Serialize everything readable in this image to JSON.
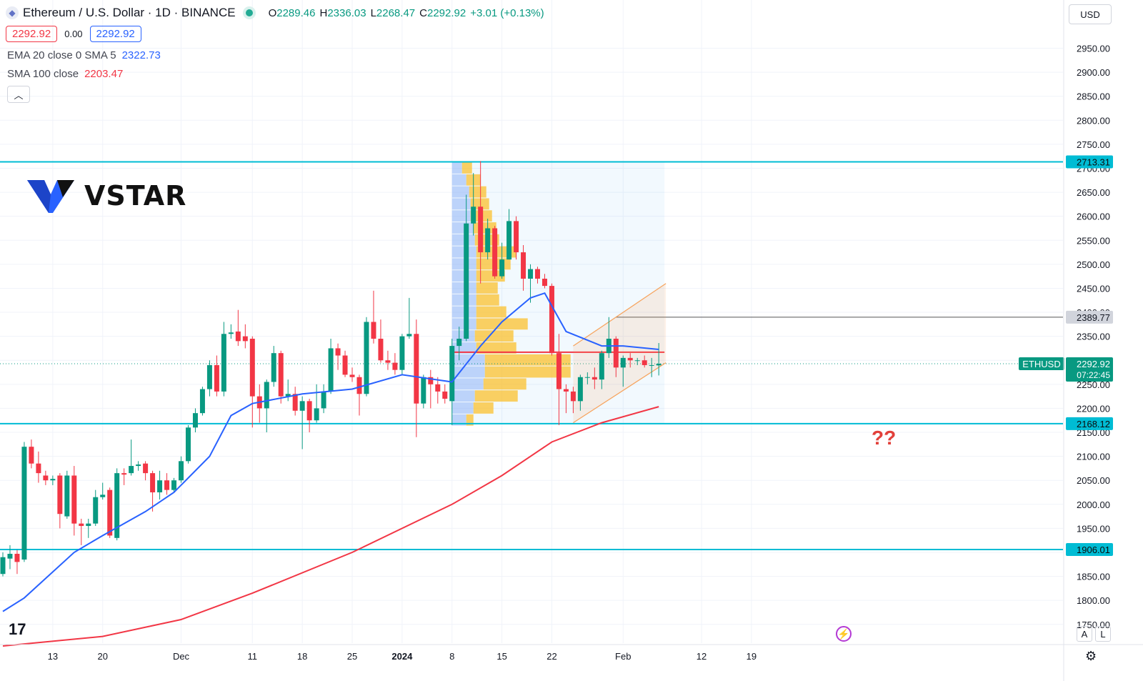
{
  "header": {
    "title": "Ethereum / U.S. Dollar · 1D · BINANCE",
    "icon": "ethereum-icon",
    "ohlc": {
      "o_label": "O",
      "o": "2289.46",
      "h_label": "H",
      "h": "2336.03",
      "l_label": "L",
      "l": "2268.47",
      "c_label": "C",
      "c": "2292.92",
      "change": "+3.01 (+0.13%)"
    },
    "sell_price": "2292.92",
    "spread": "0.00",
    "buy_price": "2292.92",
    "currency": "USD"
  },
  "indicators": [
    {
      "label": "EMA 20 close 0 SMA 5",
      "value": "2322.73",
      "color": "#2962ff"
    },
    {
      "label": "SMA 100 close",
      "value": "2203.47",
      "color": "#f23645"
    }
  ],
  "watermark": {
    "brand": "VSTAR",
    "icon": "vstar-logo-icon"
  },
  "annotation_text": "??",
  "colors": {
    "up": "#089981",
    "down": "#f23645",
    "ema": "#2962ff",
    "sma": "#f23645",
    "level": "#00bcd4",
    "channel": "#f7a35c"
  },
  "chart_data": {
    "type": "candlestick",
    "title": "Ethereum / U.S. Dollar · 1D · BINANCE",
    "ylim": [
      1705,
      2985
    ],
    "x_range": [
      "2023-11-06",
      "2024-02-23"
    ],
    "y_ticks": [
      "2950.00",
      "2900.00",
      "2850.00",
      "2800.00",
      "2750.00",
      "2700.00",
      "2650.00",
      "2600.00",
      "2550.00",
      "2500.00",
      "2450.00",
      "2400.00",
      "2350.00",
      "2300.00",
      "2250.00",
      "2200.00",
      "2150.00",
      "2100.00",
      "2050.00",
      "2000.00",
      "1950.00",
      "1900.00",
      "1850.00",
      "1800.00",
      "1750.00"
    ],
    "x_ticks": [
      {
        "date": "2023-11-13",
        "label": "13",
        "bold": false
      },
      {
        "date": "2023-11-20",
        "label": "20",
        "bold": false
      },
      {
        "date": "2023-12-01",
        "label": "Dec",
        "bold": false
      },
      {
        "date": "2023-12-11",
        "label": "11",
        "bold": false
      },
      {
        "date": "2023-12-18",
        "label": "18",
        "bold": false
      },
      {
        "date": "2023-12-25",
        "label": "25",
        "bold": false
      },
      {
        "date": "2024-01-01",
        "label": "2024",
        "bold": true
      },
      {
        "date": "2024-01-08",
        "label": "8",
        "bold": false
      },
      {
        "date": "2024-01-15",
        "label": "15",
        "bold": false
      },
      {
        "date": "2024-01-22",
        "label": "22",
        "bold": false
      },
      {
        "date": "2024-02-01",
        "label": "Feb",
        "bold": false
      },
      {
        "date": "2024-02-12",
        "label": "12",
        "bold": false
      },
      {
        "date": "2024-02-19",
        "label": "19",
        "bold": false
      }
    ],
    "candles": [
      {
        "date": "2023-11-06",
        "o": 1855,
        "h": 1900,
        "l": 1850,
        "c": 1890
      },
      {
        "date": "2023-11-07",
        "o": 1887,
        "h": 1915,
        "l": 1865,
        "c": 1897
      },
      {
        "date": "2023-11-08",
        "o": 1897,
        "h": 1905,
        "l": 1855,
        "c": 1880
      },
      {
        "date": "2023-11-09",
        "o": 1885,
        "h": 2130,
        "l": 1880,
        "c": 2120
      },
      {
        "date": "2023-11-10",
        "o": 2120,
        "h": 2135,
        "l": 2075,
        "c": 2085
      },
      {
        "date": "2023-11-11",
        "o": 2085,
        "h": 2110,
        "l": 2045,
        "c": 2065
      },
      {
        "date": "2023-11-12",
        "o": 2060,
        "h": 2070,
        "l": 2040,
        "c": 2050
      },
      {
        "date": "2023-11-13",
        "o": 2050,
        "h": 2060,
        "l": 2040,
        "c": 2053
      },
      {
        "date": "2023-11-14",
        "o": 2060,
        "h": 2065,
        "l": 1950,
        "c": 1980
      },
      {
        "date": "2023-11-15",
        "o": 1975,
        "h": 2070,
        "l": 1970,
        "c": 2060
      },
      {
        "date": "2023-11-16",
        "o": 2060,
        "h": 2080,
        "l": 1935,
        "c": 1960
      },
      {
        "date": "2023-11-17",
        "o": 1960,
        "h": 1970,
        "l": 1915,
        "c": 1955
      },
      {
        "date": "2023-11-18",
        "o": 1955,
        "h": 1970,
        "l": 1930,
        "c": 1960
      },
      {
        "date": "2023-11-19",
        "o": 1960,
        "h": 2030,
        "l": 1955,
        "c": 2015
      },
      {
        "date": "2023-11-20",
        "o": 2015,
        "h": 2045,
        "l": 2010,
        "c": 2020
      },
      {
        "date": "2023-11-21",
        "o": 2030,
        "h": 2035,
        "l": 1930,
        "c": 1935
      },
      {
        "date": "2023-11-22",
        "o": 1930,
        "h": 2075,
        "l": 1925,
        "c": 2065
      },
      {
        "date": "2023-11-23",
        "o": 2065,
        "h": 2075,
        "l": 2040,
        "c": 2062
      },
      {
        "date": "2023-11-24",
        "o": 2065,
        "h": 2135,
        "l": 2060,
        "c": 2080
      },
      {
        "date": "2023-11-25",
        "o": 2080,
        "h": 2090,
        "l": 2070,
        "c": 2083
      },
      {
        "date": "2023-11-26",
        "o": 2085,
        "h": 2090,
        "l": 2050,
        "c": 2065
      },
      {
        "date": "2023-11-27",
        "o": 2065,
        "h": 2070,
        "l": 1985,
        "c": 2025
      },
      {
        "date": "2023-11-28",
        "o": 2025,
        "h": 2070,
        "l": 2010,
        "c": 2050
      },
      {
        "date": "2023-11-29",
        "o": 2050,
        "h": 2065,
        "l": 2020,
        "c": 2030
      },
      {
        "date": "2023-11-30",
        "o": 2030,
        "h": 2055,
        "l": 2025,
        "c": 2050
      },
      {
        "date": "2023-12-01",
        "o": 2050,
        "h": 2100,
        "l": 2045,
        "c": 2090
      },
      {
        "date": "2023-12-02",
        "o": 2090,
        "h": 2165,
        "l": 2085,
        "c": 2160
      },
      {
        "date": "2023-12-03",
        "o": 2160,
        "h": 2200,
        "l": 2150,
        "c": 2190
      },
      {
        "date": "2023-12-04",
        "o": 2190,
        "h": 2245,
        "l": 2185,
        "c": 2240
      },
      {
        "date": "2023-12-05",
        "o": 2240,
        "h": 2300,
        "l": 2225,
        "c": 2290
      },
      {
        "date": "2023-12-06",
        "o": 2290,
        "h": 2310,
        "l": 2225,
        "c": 2235
      },
      {
        "date": "2023-12-07",
        "o": 2235,
        "h": 2380,
        "l": 2225,
        "c": 2355
      },
      {
        "date": "2023-12-08",
        "o": 2355,
        "h": 2375,
        "l": 2345,
        "c": 2358
      },
      {
        "date": "2023-12-09",
        "o": 2360,
        "h": 2405,
        "l": 2330,
        "c": 2340
      },
      {
        "date": "2023-12-10",
        "o": 2350,
        "h": 2375,
        "l": 2325,
        "c": 2340
      },
      {
        "date": "2023-12-11",
        "o": 2345,
        "h": 2350,
        "l": 2160,
        "c": 2225
      },
      {
        "date": "2023-12-12",
        "o": 2225,
        "h": 2250,
        "l": 2170,
        "c": 2200
      },
      {
        "date": "2023-12-13",
        "o": 2200,
        "h": 2260,
        "l": 2150,
        "c": 2255
      },
      {
        "date": "2023-12-14",
        "o": 2255,
        "h": 2330,
        "l": 2245,
        "c": 2315
      },
      {
        "date": "2023-12-15",
        "o": 2315,
        "h": 2320,
        "l": 2210,
        "c": 2225
      },
      {
        "date": "2023-12-16",
        "o": 2225,
        "h": 2260,
        "l": 2215,
        "c": 2230
      },
      {
        "date": "2023-12-17",
        "o": 2230,
        "h": 2245,
        "l": 2185,
        "c": 2195
      },
      {
        "date": "2023-12-18",
        "o": 2195,
        "h": 2225,
        "l": 2115,
        "c": 2215
      },
      {
        "date": "2023-12-19",
        "o": 2215,
        "h": 2220,
        "l": 2150,
        "c": 2175
      },
      {
        "date": "2023-12-20",
        "o": 2175,
        "h": 2250,
        "l": 2170,
        "c": 2200
      },
      {
        "date": "2023-12-21",
        "o": 2200,
        "h": 2250,
        "l": 2190,
        "c": 2235
      },
      {
        "date": "2023-12-22",
        "o": 2235,
        "h": 2345,
        "l": 2230,
        "c": 2325
      },
      {
        "date": "2023-12-23",
        "o": 2325,
        "h": 2335,
        "l": 2280,
        "c": 2310
      },
      {
        "date": "2023-12-24",
        "o": 2310,
        "h": 2320,
        "l": 2265,
        "c": 2270
      },
      {
        "date": "2023-12-25",
        "o": 2270,
        "h": 2285,
        "l": 2255,
        "c": 2265
      },
      {
        "date": "2023-12-26",
        "o": 2265,
        "h": 2270,
        "l": 2185,
        "c": 2230
      },
      {
        "date": "2023-12-27",
        "o": 2230,
        "h": 2390,
        "l": 2225,
        "c": 2380
      },
      {
        "date": "2023-12-28",
        "o": 2380,
        "h": 2445,
        "l": 2335,
        "c": 2345
      },
      {
        "date": "2023-12-29",
        "o": 2345,
        "h": 2385,
        "l": 2295,
        "c": 2300
      },
      {
        "date": "2023-12-30",
        "o": 2300,
        "h": 2320,
        "l": 2280,
        "c": 2295
      },
      {
        "date": "2023-12-31",
        "o": 2295,
        "h": 2315,
        "l": 2270,
        "c": 2280
      },
      {
        "date": "2024-01-01",
        "o": 2280,
        "h": 2355,
        "l": 2270,
        "c": 2350
      },
      {
        "date": "2024-01-02",
        "o": 2350,
        "h": 2430,
        "l": 2345,
        "c": 2355
      },
      {
        "date": "2024-01-03",
        "o": 2355,
        "h": 2385,
        "l": 2140,
        "c": 2210
      },
      {
        "date": "2024-01-04",
        "o": 2210,
        "h": 2270,
        "l": 2200,
        "c": 2265
      },
      {
        "date": "2024-01-05",
        "o": 2265,
        "h": 2280,
        "l": 2200,
        "c": 2250
      },
      {
        "date": "2024-01-06",
        "o": 2250,
        "h": 2265,
        "l": 2210,
        "c": 2235
      },
      {
        "date": "2024-01-07",
        "o": 2235,
        "h": 2250,
        "l": 2210,
        "c": 2220
      },
      {
        "date": "2024-01-08",
        "o": 2215,
        "h": 2345,
        "l": 2165,
        "c": 2330
      },
      {
        "date": "2024-01-09",
        "o": 2330,
        "h": 2370,
        "l": 2300,
        "c": 2345
      },
      {
        "date": "2024-01-10",
        "o": 2345,
        "h": 2645,
        "l": 2340,
        "c": 2585
      },
      {
        "date": "2024-01-11",
        "o": 2585,
        "h": 2690,
        "l": 2560,
        "c": 2620
      },
      {
        "date": "2024-01-12",
        "o": 2620,
        "h": 2715,
        "l": 2460,
        "c": 2525
      },
      {
        "date": "2024-01-13",
        "o": 2525,
        "h": 2595,
        "l": 2510,
        "c": 2575
      },
      {
        "date": "2024-01-14",
        "o": 2575,
        "h": 2580,
        "l": 2470,
        "c": 2475
      },
      {
        "date": "2024-01-15",
        "o": 2475,
        "h": 2545,
        "l": 2470,
        "c": 2510
      },
      {
        "date": "2024-01-16",
        "o": 2510,
        "h": 2615,
        "l": 2510,
        "c": 2590
      },
      {
        "date": "2024-01-17",
        "o": 2590,
        "h": 2600,
        "l": 2510,
        "c": 2525
      },
      {
        "date": "2024-01-18",
        "o": 2525,
        "h": 2540,
        "l": 2445,
        "c": 2470
      },
      {
        "date": "2024-01-19",
        "o": 2470,
        "h": 2500,
        "l": 2420,
        "c": 2490
      },
      {
        "date": "2024-01-20",
        "o": 2490,
        "h": 2495,
        "l": 2460,
        "c": 2470
      },
      {
        "date": "2024-01-21",
        "o": 2470,
        "h": 2480,
        "l": 2450,
        "c": 2455
      },
      {
        "date": "2024-01-22",
        "o": 2455,
        "h": 2460,
        "l": 2310,
        "c": 2315
      },
      {
        "date": "2024-01-23",
        "o": 2315,
        "h": 2355,
        "l": 2165,
        "c": 2240
      },
      {
        "date": "2024-01-24",
        "o": 2240,
        "h": 2250,
        "l": 2190,
        "c": 2235
      },
      {
        "date": "2024-01-25",
        "o": 2235,
        "h": 2245,
        "l": 2190,
        "c": 2215
      },
      {
        "date": "2024-01-26",
        "o": 2215,
        "h": 2270,
        "l": 2195,
        "c": 2265
      },
      {
        "date": "2024-01-27",
        "o": 2265,
        "h": 2275,
        "l": 2250,
        "c": 2265
      },
      {
        "date": "2024-01-28",
        "o": 2265,
        "h": 2285,
        "l": 2240,
        "c": 2260
      },
      {
        "date": "2024-01-29",
        "o": 2260,
        "h": 2320,
        "l": 2240,
        "c": 2315
      },
      {
        "date": "2024-01-30",
        "o": 2315,
        "h": 2390,
        "l": 2305,
        "c": 2345
      },
      {
        "date": "2024-01-31",
        "o": 2345,
        "h": 2350,
        "l": 2265,
        "c": 2285
      },
      {
        "date": "2024-02-01",
        "o": 2285,
        "h": 2310,
        "l": 2245,
        "c": 2305
      },
      {
        "date": "2024-02-02",
        "o": 2305,
        "h": 2315,
        "l": 2285,
        "c": 2300
      },
      {
        "date": "2024-02-03",
        "o": 2300,
        "h": 2305,
        "l": 2290,
        "c": 2300
      },
      {
        "date": "2024-02-04",
        "o": 2300,
        "h": 2310,
        "l": 2285,
        "c": 2290
      },
      {
        "date": "2024-02-05",
        "o": 2290,
        "h": 2305,
        "l": 2265,
        "c": 2290
      },
      {
        "date": "2024-02-06",
        "o": 2289.46,
        "h": 2336.03,
        "l": 2268.47,
        "c": 2292.92
      }
    ],
    "ema20": [
      {
        "date": "2023-11-06",
        "v": 1777
      },
      {
        "date": "2023-11-09",
        "v": 1805
      },
      {
        "date": "2023-11-16",
        "v": 1900
      },
      {
        "date": "2023-11-20",
        "v": 1935
      },
      {
        "date": "2023-11-26",
        "v": 1985
      },
      {
        "date": "2023-11-30",
        "v": 2025
      },
      {
        "date": "2023-12-05",
        "v": 2100
      },
      {
        "date": "2023-12-08",
        "v": 2185
      },
      {
        "date": "2023-12-11",
        "v": 2210
      },
      {
        "date": "2023-12-18",
        "v": 2230
      },
      {
        "date": "2023-12-25",
        "v": 2240
      },
      {
        "date": "2024-01-01",
        "v": 2270
      },
      {
        "date": "2024-01-08",
        "v": 2255
      },
      {
        "date": "2024-01-12",
        "v": 2330
      },
      {
        "date": "2024-01-15",
        "v": 2380
      },
      {
        "date": "2024-01-19",
        "v": 2430
      },
      {
        "date": "2024-01-21",
        "v": 2440
      },
      {
        "date": "2024-01-24",
        "v": 2360
      },
      {
        "date": "2024-01-29",
        "v": 2330
      },
      {
        "date": "2024-02-01",
        "v": 2330
      },
      {
        "date": "2024-02-06",
        "v": 2322.73
      }
    ],
    "sma100": [
      {
        "date": "2023-11-06",
        "v": 1705
      },
      {
        "date": "2023-11-20",
        "v": 1725
      },
      {
        "date": "2023-12-01",
        "v": 1760
      },
      {
        "date": "2023-12-11",
        "v": 1815
      },
      {
        "date": "2023-12-25",
        "v": 1900
      },
      {
        "date": "2024-01-08",
        "v": 2000
      },
      {
        "date": "2024-01-15",
        "v": 2060
      },
      {
        "date": "2024-01-22",
        "v": 2130
      },
      {
        "date": "2024-01-29",
        "v": 2170
      },
      {
        "date": "2024-02-06",
        "v": 2203.47
      }
    ],
    "levels": [
      {
        "price": 2713.31,
        "label": "2713.31"
      },
      {
        "price": 2168.12,
        "label": "2168.12"
      },
      {
        "price": 1906.01,
        "label": "1906.01"
      }
    ],
    "marker_line": {
      "price": 2389.77,
      "label": "2389.77",
      "from": "2024-01-31"
    },
    "last_price": {
      "price": 2292.92,
      "symbol": "ETHUSD",
      "label": "2292.92",
      "countdown": "07:22:45"
    },
    "channel": {
      "upper": [
        {
          "date": "2024-01-25",
          "v": 2330
        },
        {
          "date": "2024-02-07",
          "v": 2460
        }
      ],
      "lower": [
        {
          "date": "2024-01-25",
          "v": 2170
        },
        {
          "date": "2024-02-07",
          "v": 2295
        }
      ]
    },
    "volume_profile": {
      "from": "2024-01-08",
      "to": "2024-02-06",
      "poc_price": 2317,
      "rows": [
        {
          "price": 2700,
          "up": 0.07,
          "down": 0.07
        },
        {
          "price": 2675,
          "up": 0.1,
          "down": 0.1
        },
        {
          "price": 2650,
          "up": 0.12,
          "down": 0.12
        },
        {
          "price": 2625,
          "up": 0.13,
          "down": 0.13
        },
        {
          "price": 2600,
          "up": 0.13,
          "down": 0.15
        },
        {
          "price": 2575,
          "up": 0.15,
          "down": 0.16
        },
        {
          "price": 2550,
          "up": 0.16,
          "down": 0.17
        },
        {
          "price": 2525,
          "up": 0.17,
          "down": 0.28
        },
        {
          "price": 2500,
          "up": 0.17,
          "down": 0.24
        },
        {
          "price": 2475,
          "up": 0.17,
          "down": 0.2
        },
        {
          "price": 2450,
          "up": 0.17,
          "down": 0.15
        },
        {
          "price": 2425,
          "up": 0.17,
          "down": 0.16
        },
        {
          "price": 2400,
          "up": 0.17,
          "down": 0.21
        },
        {
          "price": 2375,
          "up": 0.17,
          "down": 0.36
        },
        {
          "price": 2350,
          "up": 0.16,
          "down": 0.27
        },
        {
          "price": 2325,
          "up": 0.17,
          "down": 0.28
        },
        {
          "price": 2300,
          "up": 0.23,
          "down": 0.6
        },
        {
          "price": 2275,
          "up": 0.23,
          "down": 0.6
        },
        {
          "price": 2250,
          "up": 0.22,
          "down": 0.3
        },
        {
          "price": 2225,
          "up": 0.16,
          "down": 0.3
        },
        {
          "price": 2200,
          "up": 0.15,
          "down": 0.14
        },
        {
          "price": 2175,
          "up": 0.1,
          "down": 0.05
        }
      ]
    }
  }
}
